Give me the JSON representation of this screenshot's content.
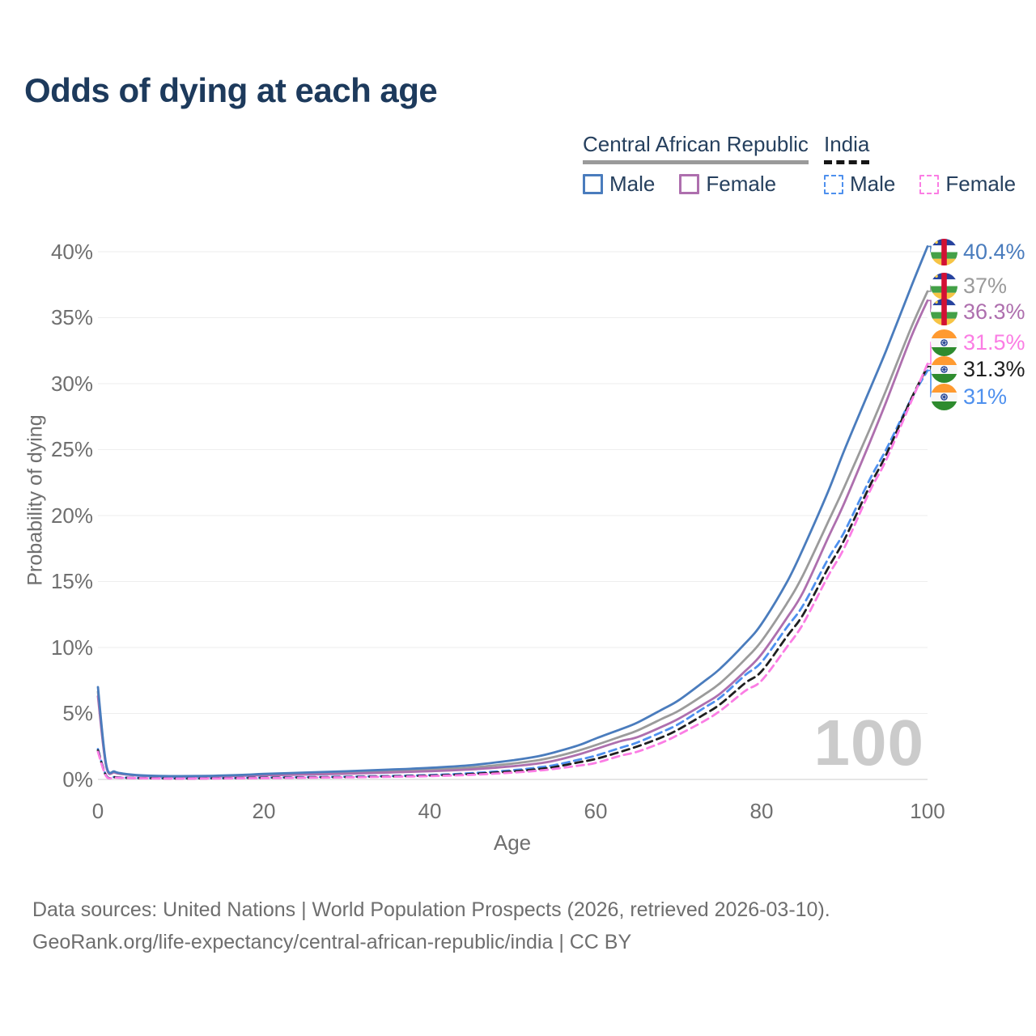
{
  "title": "Odds of dying at each age",
  "watermark_age": "100",
  "legend": {
    "car": {
      "label": "Central African Republic",
      "male": "Male",
      "female": "Female"
    },
    "india": {
      "label": "India",
      "male": "Male",
      "female": "Female"
    }
  },
  "footer": {
    "line1": "Data sources: United Nations | World Population Prospects (2026, retrieved 2026-03-10).",
    "line2": "GeoRank.org/life-expectancy/central-african-republic/india | CC BY"
  },
  "chart_data": {
    "type": "line",
    "title": "Odds of dying at each age",
    "xlabel": "Age",
    "ylabel": "Probability of dying",
    "xlim": [
      0,
      100
    ],
    "ylim": [
      0,
      40.5
    ],
    "grid": "horizontal",
    "legend_position": "top-right",
    "x_ticks": [
      0,
      20,
      40,
      60,
      80,
      100
    ],
    "x_tick_labels": [
      "0",
      "20",
      "40",
      "60",
      "80",
      "100"
    ],
    "y_ticks_percent": [
      0,
      5,
      10,
      15,
      20,
      25,
      30,
      35,
      40
    ],
    "y_tick_labels": [
      "40%",
      "35%",
      "30%",
      "25%",
      "20%",
      "15%",
      "10%",
      "5%",
      "0%"
    ],
    "ages": [
      0,
      1,
      2,
      3,
      5,
      8,
      10,
      13,
      15,
      18,
      20,
      25,
      30,
      35,
      40,
      45,
      50,
      53,
      55,
      58,
      60,
      63,
      65,
      68,
      70,
      73,
      75,
      78,
      80,
      83,
      85,
      88,
      90,
      93,
      95,
      98,
      100
    ],
    "series": [
      {
        "id": "car-male",
        "name": "Central African Republic — Male",
        "country": "Central African Republic",
        "sex": "male",
        "style": "solid",
        "color": "#4a7cbd",
        "end_label": {
          "text": "40.4%",
          "value": 40.4,
          "flag": "car"
        },
        "values": [
          7.0,
          1.1,
          0.6,
          0.45,
          0.32,
          0.26,
          0.25,
          0.27,
          0.3,
          0.36,
          0.42,
          0.52,
          0.62,
          0.74,
          0.88,
          1.08,
          1.45,
          1.75,
          2.05,
          2.6,
          3.1,
          3.8,
          4.3,
          5.3,
          6.0,
          7.4,
          8.4,
          10.3,
          11.8,
          14.9,
          17.5,
          21.8,
          25.0,
          29.5,
          32.5,
          37.3,
          40.4
        ]
      },
      {
        "id": "car-both",
        "name": "Central African Republic — Both sexes",
        "country": "Central African Republic",
        "sex": "both",
        "style": "solid",
        "color": "#9b9b9b",
        "end_label": {
          "text": "37%",
          "value": 37.0,
          "flag": "car"
        },
        "values": [
          6.65,
          1.02,
          0.56,
          0.42,
          0.3,
          0.23,
          0.22,
          0.24,
          0.27,
          0.31,
          0.36,
          0.44,
          0.52,
          0.62,
          0.74,
          0.9,
          1.2,
          1.45,
          1.7,
          2.2,
          2.6,
          3.25,
          3.7,
          4.6,
          5.2,
          6.4,
          7.3,
          9.1,
          10.5,
          13.3,
          15.5,
          19.5,
          22.2,
          26.5,
          29.5,
          34.2,
          37.0
        ]
      },
      {
        "id": "car-female",
        "name": "Central African Republic — Female",
        "country": "Central African Republic",
        "sex": "female",
        "style": "solid",
        "color": "#ae6fae",
        "end_label": {
          "text": "36.3%",
          "value": 36.3,
          "flag": "car"
        },
        "values": [
          6.3,
          0.95,
          0.52,
          0.4,
          0.28,
          0.21,
          0.2,
          0.22,
          0.24,
          0.28,
          0.31,
          0.37,
          0.43,
          0.52,
          0.62,
          0.76,
          1.0,
          1.2,
          1.42,
          1.9,
          2.3,
          2.9,
          3.2,
          4.0,
          4.6,
          5.7,
          6.5,
          8.2,
          9.5,
          12.2,
          14.2,
          18.3,
          21.0,
          25.5,
          28.6,
          33.5,
          36.3
        ]
      },
      {
        "id": "india-male",
        "name": "India — Male",
        "country": "India",
        "sex": "male",
        "style": "dashed",
        "color": "#4e90ee",
        "end_label": {
          "text": "31%",
          "value": 31.0,
          "flag": "india"
        },
        "values": [
          2.3,
          0.28,
          0.18,
          0.14,
          0.11,
          0.09,
          0.08,
          0.09,
          0.1,
          0.12,
          0.14,
          0.17,
          0.21,
          0.26,
          0.33,
          0.47,
          0.7,
          0.9,
          1.08,
          1.5,
          1.8,
          2.4,
          2.8,
          3.6,
          4.2,
          5.4,
          6.2,
          7.9,
          8.9,
          11.5,
          13.2,
          16.7,
          18.8,
          22.7,
          25.0,
          28.8,
          31.0
        ]
      },
      {
        "id": "india-both",
        "name": "India — Both sexes",
        "country": "India",
        "sex": "both",
        "style": "dashed",
        "color": "#1f1f1f",
        "end_label": {
          "text": "31.3%",
          "value": 31.3,
          "flag": "india"
        },
        "values": [
          2.2,
          0.26,
          0.17,
          0.13,
          0.1,
          0.08,
          0.07,
          0.08,
          0.09,
          0.11,
          0.12,
          0.15,
          0.18,
          0.23,
          0.29,
          0.41,
          0.61,
          0.78,
          0.94,
          1.3,
          1.55,
          2.1,
          2.5,
          3.2,
          3.8,
          4.9,
          5.7,
          7.3,
          8.2,
          10.8,
          12.5,
          16.0,
          18.2,
          22.2,
          24.6,
          28.8,
          31.3
        ]
      },
      {
        "id": "india-female",
        "name": "India — Female",
        "country": "India",
        "sex": "female",
        "style": "dashed",
        "color": "#fb7de4",
        "end_label": {
          "text": "31.5%",
          "value": 31.5,
          "flag": "india"
        },
        "values": [
          2.1,
          0.24,
          0.15,
          0.12,
          0.09,
          0.07,
          0.06,
          0.07,
          0.08,
          0.09,
          0.1,
          0.13,
          0.16,
          0.2,
          0.25,
          0.35,
          0.52,
          0.66,
          0.8,
          1.05,
          1.25,
          1.8,
          2.1,
          2.8,
          3.4,
          4.4,
          5.2,
          6.7,
          7.5,
          10.0,
          11.8,
          15.4,
          17.6,
          21.8,
          24.2,
          28.6,
          31.5
        ]
      }
    ]
  }
}
